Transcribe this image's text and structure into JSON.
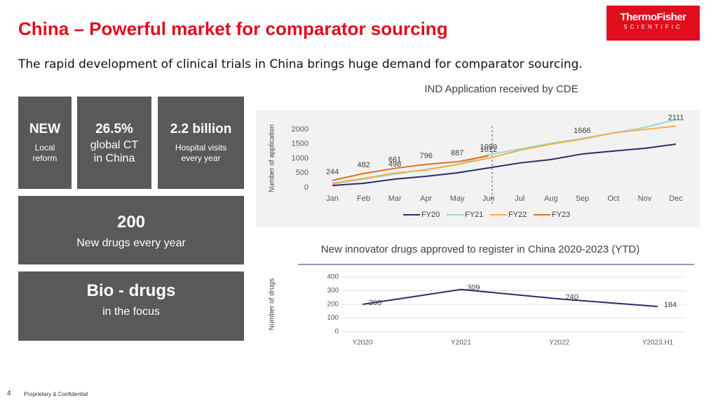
{
  "header": {
    "title": "China – Powerful market for comparator sourcing",
    "subtitle": "The rapid development of clinical trials in China brings huge demand for comparator sourcing.",
    "logo": {
      "brand": "ThermoFisher",
      "sub": "SCIENTIFIC"
    }
  },
  "tiles": [
    {
      "title": "NEW",
      "text": "Local reform"
    },
    {
      "title": "26.5%",
      "text": "global CT in China"
    },
    {
      "title": "2.2 billion",
      "text": "Hospital visits every year"
    },
    {
      "title": "200",
      "text": "New drugs every year"
    },
    {
      "title": "Bio - drugs",
      "text": "in the focus"
    }
  ],
  "footer": {
    "page": "4",
    "note": "Proprietary & Confidential"
  },
  "chart_data": [
    {
      "type": "line",
      "title": "IND Application received by CDE",
      "ylabel": "Number of application",
      "categories": [
        "Jan",
        "Feb",
        "Mar",
        "Apr",
        "May",
        "Jun",
        "Jul",
        "Aug",
        "Sep",
        "Oct",
        "Nov",
        "Dec"
      ],
      "series": [
        {
          "name": "FY20",
          "color": "#2e2a6b",
          "values": [
            70,
            145,
            290,
            385,
            505,
            675,
            845,
            965,
            1155,
            1255,
            1350,
            1495
          ]
        },
        {
          "name": "FY21",
          "color": "#9fd6da",
          "values": [
            120,
            290,
            460,
            625,
            795,
            1130,
            1325,
            1520,
            1690,
            1880,
            2070,
            2340
          ]
        },
        {
          "name": "FY22",
          "color": "#f2b045",
          "values": [
            145,
            315,
            498,
            600,
            795,
            1012,
            1280,
            1495,
            1666,
            1880,
            2000,
            2111
          ],
          "value_labels": [
            null,
            null,
            "498",
            null,
            null,
            "1012",
            null,
            null,
            "1666",
            null,
            null,
            "2111"
          ]
        },
        {
          "name": "FY23",
          "color": "#e07020",
          "values": [
            244,
            482,
            661,
            796,
            887,
            1090,
            null,
            null,
            null,
            null,
            null,
            null
          ],
          "value_labels": [
            "244",
            "482",
            "661",
            "796",
            "887",
            "1090",
            null,
            null,
            null,
            null,
            null,
            null
          ]
        }
      ],
      "ylim": [
        0,
        2000
      ],
      "yticks": [
        0,
        500,
        1000,
        1500,
        2000
      ],
      "grid": false,
      "legend": "bottom"
    },
    {
      "type": "line",
      "title": "New innovator drugs approved to register in China 2020-2023 (YTD)",
      "ylabel": "Number of drugs",
      "categories": [
        "Y2020",
        "Y2021",
        "Y2022",
        "Y2023.H1"
      ],
      "series": [
        {
          "color": "#2e2a6b",
          "values": [
            200,
            309,
            240,
            184
          ],
          "value_labels": [
            "200",
            "309",
            "240",
            "184"
          ]
        }
      ],
      "ylim": [
        0,
        400
      ],
      "yticks": [
        0,
        100,
        200,
        300,
        400
      ],
      "grid": true
    }
  ]
}
